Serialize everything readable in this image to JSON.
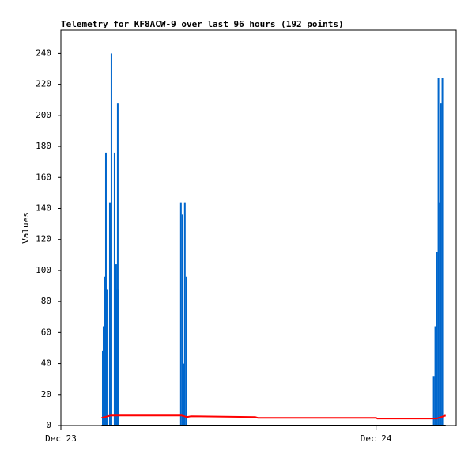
{
  "chart_data": {
    "type": "bar",
    "title": "Telemetry for KF8ACW-9 over last 96 hours (192 points)",
    "y_label": "Values",
    "xlim": [
      0,
      30.1
    ],
    "xticks": [
      {
        "value": 0,
        "label": "Dec 23"
      },
      {
        "value": 24,
        "label": "Dec 24"
      }
    ],
    "ylim": [
      0,
      255
    ],
    "yticks": [
      0,
      20,
      40,
      60,
      80,
      100,
      120,
      140,
      160,
      180,
      200,
      220,
      240
    ],
    "series": [
      {
        "type": "bar",
        "color": "#0066cc",
        "x": [
          3.19,
          3.25,
          3.37,
          3.43,
          3.49,
          3.73,
          3.85,
          4.09,
          4.21,
          4.27,
          4.33,
          4.39,
          9.14,
          9.26,
          9.38,
          9.44,
          9.56,
          28.39,
          28.51,
          28.63,
          28.75,
          28.87,
          28.93,
          29.05
        ],
        "values": [
          48,
          64,
          96,
          176,
          88,
          144,
          240,
          176,
          104,
          88,
          208,
          88,
          144,
          136,
          40,
          144,
          96,
          32,
          64,
          112,
          224,
          144,
          208,
          224
        ]
      },
      {
        "type": "line",
        "color": "#ff0000",
        "x": [
          3.1,
          3.8,
          9.2,
          9.6,
          9.9,
          14.8,
          15.0,
          24.0,
          24.1,
          28.6,
          29.3
        ],
        "values": [
          5,
          6.5,
          6.5,
          5.5,
          6,
          5.5,
          5,
          5,
          4.5,
          4.5,
          6.5
        ]
      },
      {
        "type": "line",
        "color": "#000000",
        "x": [
          3.1,
          29.3
        ],
        "values": [
          0,
          0
        ]
      }
    ]
  }
}
